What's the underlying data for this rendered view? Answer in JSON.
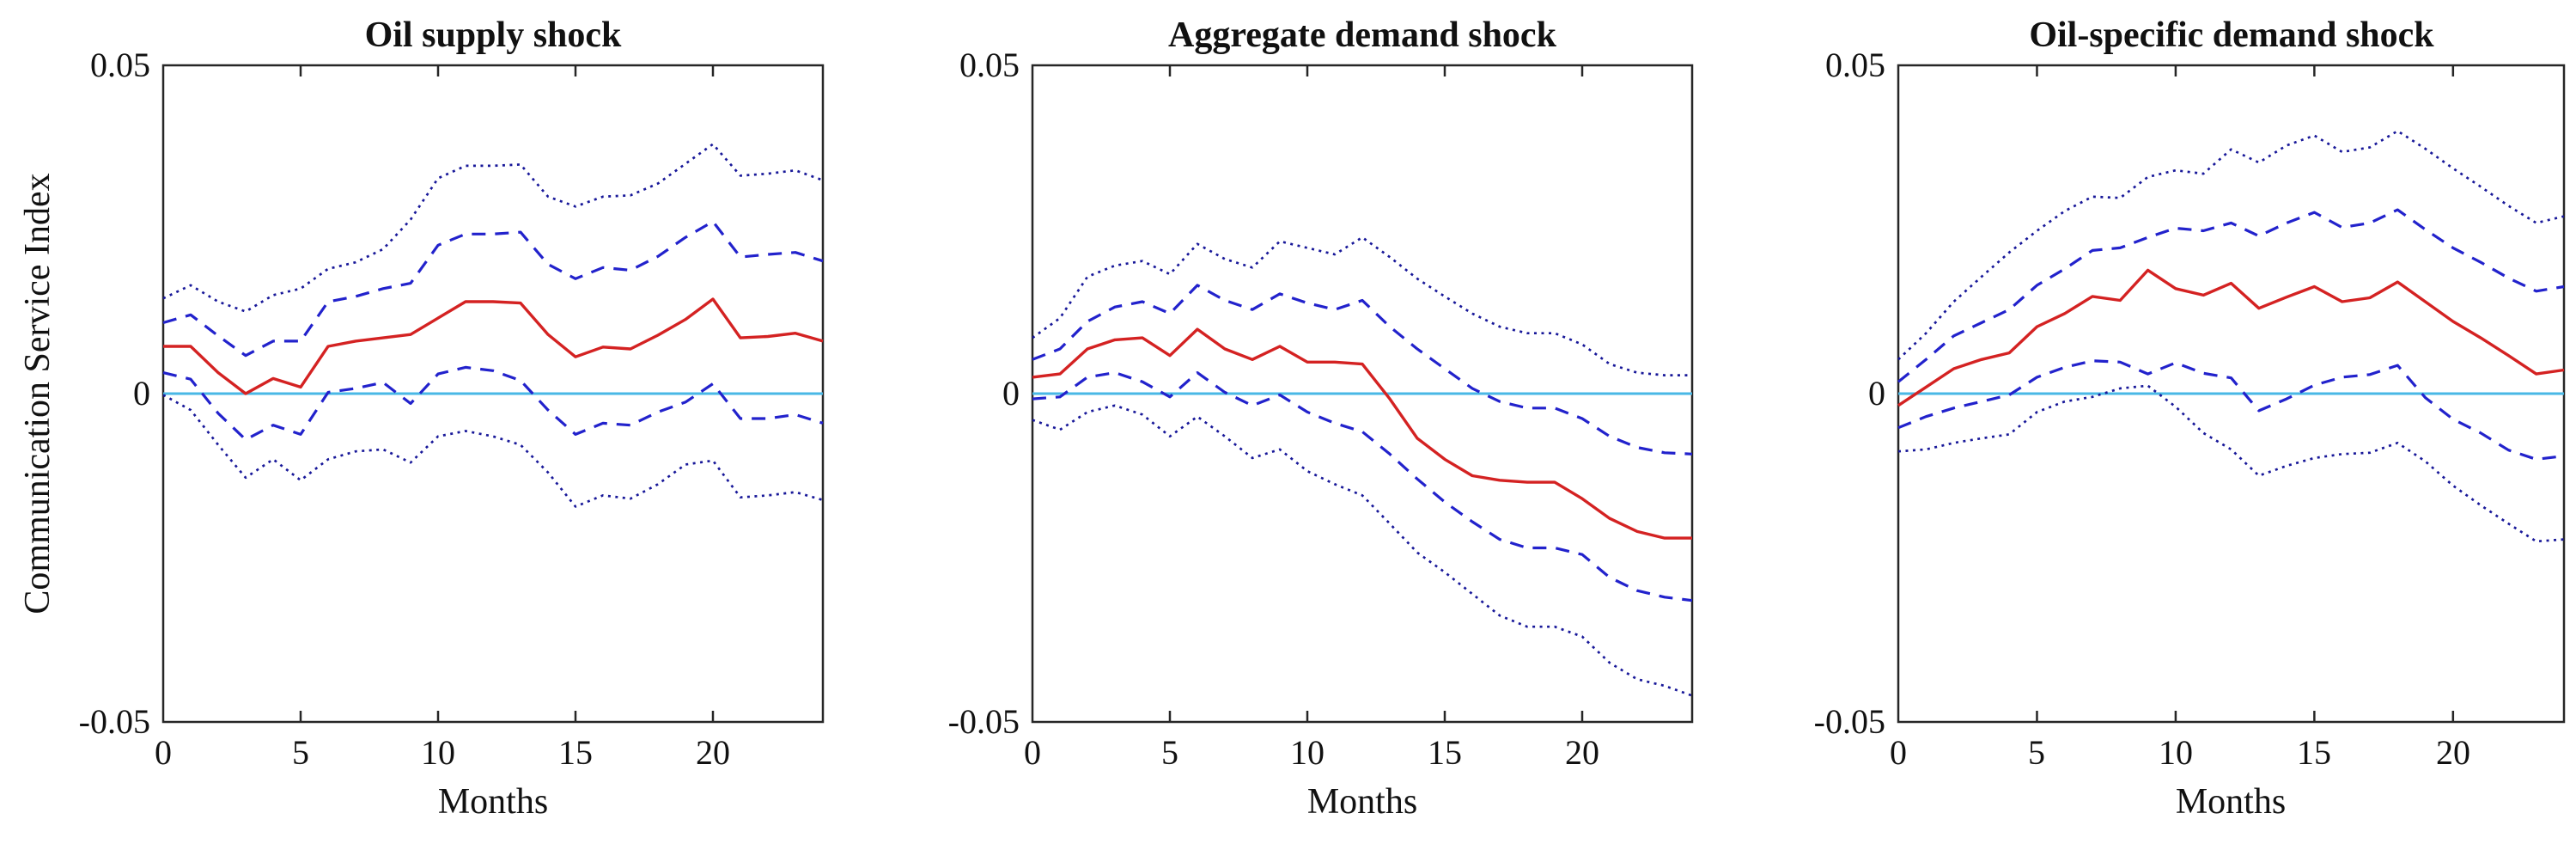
{
  "colors": {
    "median": "#d42222",
    "inner_band": "#2222cc",
    "outer_band": "#181899",
    "zero_line": "#49b8e6",
    "axis": "#262626",
    "text": "#111111",
    "background": "#ffffff"
  },
  "chart_data": [
    {
      "type": "line",
      "title": "Oil supply shock",
      "x_axis_label": "Months",
      "y_axis_label": "Communication Service Index",
      "xlim": [
        0,
        24
      ],
      "ylim": [
        -0.05,
        0.05
      ],
      "x_tick_labels": [
        "0",
        "5",
        "10",
        "15",
        "20"
      ],
      "x_tick_values": [
        0,
        5,
        10,
        15,
        20
      ],
      "y_tick_labels": [
        "0.05",
        "0",
        "-0.05"
      ],
      "y_tick_values": [
        0.05,
        0,
        -0.05
      ],
      "zero_line_value": 0,
      "grid": false,
      "legend": "none",
      "x_values": [
        0,
        1,
        2,
        3,
        4,
        5,
        6,
        7,
        8,
        9,
        10,
        11,
        12,
        13,
        14,
        15,
        16,
        17,
        18,
        19,
        20,
        21,
        22,
        23,
        24
      ],
      "series": [
        {
          "name": "upper_outer_band",
          "style": "dotted",
          "color_key": "outer_band",
          "values": [
            0.0145,
            0.0165,
            0.014,
            0.0125,
            0.015,
            0.016,
            0.019,
            0.02,
            0.022,
            0.0265,
            0.0328,
            0.0347,
            0.0347,
            0.0349,
            0.03,
            0.0285,
            0.03,
            0.0302,
            0.032,
            0.035,
            0.038,
            0.0332,
            0.0335,
            0.034,
            0.0325
          ]
        },
        {
          "name": "upper_inner_band",
          "style": "dashed",
          "color_key": "inner_band",
          "values": [
            0.0108,
            0.012,
            0.0088,
            0.0058,
            0.008,
            0.008,
            0.014,
            0.0148,
            0.016,
            0.0168,
            0.0226,
            0.0243,
            0.0243,
            0.0246,
            0.0197,
            0.0175,
            0.0192,
            0.0188,
            0.0209,
            0.0238,
            0.0262,
            0.0208,
            0.0212,
            0.0215,
            0.0202
          ]
        },
        {
          "name": "lower_inner_band",
          "style": "dashed",
          "color_key": "inner_band",
          "values": [
            0.0032,
            0.0022,
            -0.003,
            -0.007,
            -0.0048,
            -0.0062,
            0.0002,
            0.0008,
            0.0017,
            -0.0015,
            0.003,
            0.004,
            0.0035,
            0.002,
            -0.0025,
            -0.0062,
            -0.0045,
            -0.0048,
            -0.0028,
            -0.0013,
            0.0015,
            -0.0038,
            -0.0038,
            -0.0032,
            -0.0045
          ]
        },
        {
          "name": "lower_outer_band",
          "style": "dotted",
          "color_key": "outer_band",
          "values": [
            -0.0002,
            -0.0025,
            -0.0078,
            -0.0128,
            -0.01,
            -0.0132,
            -0.01,
            -0.0088,
            -0.0085,
            -0.0105,
            -0.0065,
            -0.0057,
            -0.0065,
            -0.0078,
            -0.012,
            -0.0172,
            -0.0155,
            -0.016,
            -0.0138,
            -0.0108,
            -0.0102,
            -0.0158,
            -0.0155,
            -0.015,
            -0.0162
          ]
        },
        {
          "name": "median",
          "style": "solid",
          "color_key": "median",
          "values": [
            0.0072,
            0.0072,
            0.0032,
            0.0,
            0.0023,
            0.001,
            0.0072,
            0.008,
            0.0085,
            0.009,
            0.0115,
            0.014,
            0.014,
            0.0138,
            0.009,
            0.0056,
            0.0071,
            0.0068,
            0.0089,
            0.0113,
            0.0144,
            0.0085,
            0.0087,
            0.0092,
            0.008
          ]
        }
      ]
    },
    {
      "type": "line",
      "title": "Aggregate demand shock",
      "x_axis_label": "Months",
      "xlim": [
        0,
        24
      ],
      "ylim": [
        -0.05,
        0.05
      ],
      "x_tick_labels": [
        "0",
        "5",
        "10",
        "15",
        "20"
      ],
      "x_tick_values": [
        0,
        5,
        10,
        15,
        20
      ],
      "y_tick_labels": [
        "0.05",
        "0",
        "-0.05"
      ],
      "y_tick_values": [
        0.05,
        0,
        -0.05
      ],
      "zero_line_value": 0,
      "grid": false,
      "legend": "none",
      "x_values": [
        0,
        1,
        2,
        3,
        4,
        5,
        6,
        7,
        8,
        9,
        10,
        11,
        12,
        13,
        14,
        15,
        16,
        17,
        18,
        19,
        20,
        21,
        22,
        23,
        24
      ],
      "series": [
        {
          "name": "upper_outer_band",
          "style": "dotted",
          "color_key": "outer_band",
          "values": [
            0.0085,
            0.0115,
            0.0178,
            0.0195,
            0.0202,
            0.0182,
            0.0228,
            0.0205,
            0.0192,
            0.0232,
            0.0222,
            0.0212,
            0.0238,
            0.0208,
            0.0175,
            0.0148,
            0.0122,
            0.0102,
            0.0092,
            0.0092,
            0.0075,
            0.0045,
            0.0032,
            0.0028,
            0.0028
          ]
        },
        {
          "name": "upper_inner_band",
          "style": "dashed",
          "color_key": "inner_band",
          "values": [
            0.0052,
            0.0068,
            0.011,
            0.0132,
            0.014,
            0.0122,
            0.0165,
            0.0142,
            0.0128,
            0.0152,
            0.0138,
            0.0128,
            0.0142,
            0.0102,
            0.0068,
            0.0038,
            0.0008,
            -0.0012,
            -0.0022,
            -0.0022,
            -0.0038,
            -0.0065,
            -0.0082,
            -0.009,
            -0.0092
          ]
        },
        {
          "name": "lower_inner_band",
          "style": "dashed",
          "color_key": "inner_band",
          "values": [
            -0.0008,
            -0.0005,
            0.0025,
            0.0032,
            0.0018,
            -0.0005,
            0.0032,
            0.0002,
            -0.0018,
            -0.0002,
            -0.0028,
            -0.0045,
            -0.0058,
            -0.0092,
            -0.013,
            -0.0165,
            -0.0195,
            -0.0222,
            -0.0235,
            -0.0235,
            -0.0245,
            -0.028,
            -0.03,
            -0.031,
            -0.0315
          ]
        },
        {
          "name": "lower_outer_band",
          "style": "dotted",
          "color_key": "outer_band",
          "values": [
            -0.004,
            -0.0055,
            -0.0028,
            -0.0018,
            -0.0032,
            -0.0065,
            -0.0035,
            -0.0065,
            -0.0098,
            -0.0085,
            -0.0118,
            -0.0138,
            -0.0155,
            -0.0198,
            -0.0242,
            -0.0272,
            -0.0305,
            -0.0338,
            -0.0355,
            -0.0355,
            -0.037,
            -0.041,
            -0.0435,
            -0.0445,
            -0.046
          ]
        },
        {
          "name": "median",
          "style": "solid",
          "color_key": "median",
          "values": [
            0.0025,
            0.003,
            0.0068,
            0.0082,
            0.0085,
            0.0058,
            0.0098,
            0.0068,
            0.0052,
            0.0072,
            0.0048,
            0.0048,
            0.0045,
            -0.0008,
            -0.0068,
            -0.01,
            -0.0125,
            -0.0132,
            -0.0135,
            -0.0135,
            -0.016,
            -0.019,
            -0.021,
            -0.022,
            -0.022
          ]
        }
      ]
    },
    {
      "type": "line",
      "title": "Oil-specific demand shock",
      "x_axis_label": "Months",
      "xlim": [
        0,
        24
      ],
      "ylim": [
        -0.05,
        0.05
      ],
      "x_tick_labels": [
        "0",
        "5",
        "10",
        "15",
        "20"
      ],
      "x_tick_values": [
        0,
        5,
        10,
        15,
        20
      ],
      "y_tick_labels": [
        "0.05",
        "0",
        "-0.05"
      ],
      "y_tick_values": [
        0.05,
        0,
        -0.05
      ],
      "zero_line_value": 0,
      "grid": false,
      "legend": "none",
      "x_values": [
        0,
        1,
        2,
        3,
        4,
        5,
        6,
        7,
        8,
        9,
        10,
        11,
        12,
        13,
        14,
        15,
        16,
        17,
        18,
        19,
        20,
        21,
        22,
        23,
        24
      ],
      "series": [
        {
          "name": "upper_outer_band",
          "style": "dotted",
          "color_key": "outer_band",
          "values": [
            0.0052,
            0.0092,
            0.014,
            0.0178,
            0.0215,
            0.0248,
            0.0278,
            0.03,
            0.0298,
            0.033,
            0.034,
            0.0335,
            0.0372,
            0.0352,
            0.0378,
            0.0393,
            0.0368,
            0.0375,
            0.04,
            0.0373,
            0.0343,
            0.0315,
            0.0286,
            0.026,
            0.027
          ]
        },
        {
          "name": "upper_inner_band",
          "style": "dashed",
          "color_key": "inner_band",
          "values": [
            0.0018,
            0.0052,
            0.0088,
            0.0108,
            0.0128,
            0.0165,
            0.019,
            0.0218,
            0.0222,
            0.0238,
            0.0252,
            0.0248,
            0.026,
            0.024,
            0.026,
            0.0276,
            0.0253,
            0.026,
            0.028,
            0.025,
            0.0222,
            0.02,
            0.0176,
            0.0156,
            0.0163
          ]
        },
        {
          "name": "lower_inner_band",
          "style": "dashed",
          "color_key": "inner_band",
          "values": [
            -0.0052,
            -0.0035,
            -0.0022,
            -0.0012,
            -0.0002,
            0.0025,
            0.004,
            0.005,
            0.0048,
            0.003,
            0.0047,
            0.0031,
            0.0024,
            -0.0026,
            -0.0008,
            0.0013,
            0.0025,
            0.0029,
            0.0043,
            -0.0006,
            -0.0039,
            -0.006,
            -0.0086,
            -0.01,
            -0.0095
          ]
        },
        {
          "name": "lower_outer_band",
          "style": "dotted",
          "color_key": "outer_band",
          "values": [
            -0.0088,
            -0.0085,
            -0.0075,
            -0.0068,
            -0.0062,
            -0.0028,
            -0.0012,
            -0.0005,
            0.0008,
            0.0012,
            -0.002,
            -0.006,
            -0.0085,
            -0.0125,
            -0.011,
            -0.0098,
            -0.0092,
            -0.009,
            -0.0075,
            -0.0103,
            -0.014,
            -0.017,
            -0.0198,
            -0.0225,
            -0.0222
          ]
        },
        {
          "name": "median",
          "style": "solid",
          "color_key": "median",
          "values": [
            -0.0018,
            0.001,
            0.0038,
            0.0052,
            0.0062,
            0.0102,
            0.0122,
            0.0148,
            0.0142,
            0.0188,
            0.016,
            0.015,
            0.0168,
            0.013,
            0.0147,
            0.0163,
            0.014,
            0.0146,
            0.017,
            0.014,
            0.011,
            0.0085,
            0.0058,
            0.003,
            0.0036
          ]
        }
      ]
    }
  ]
}
